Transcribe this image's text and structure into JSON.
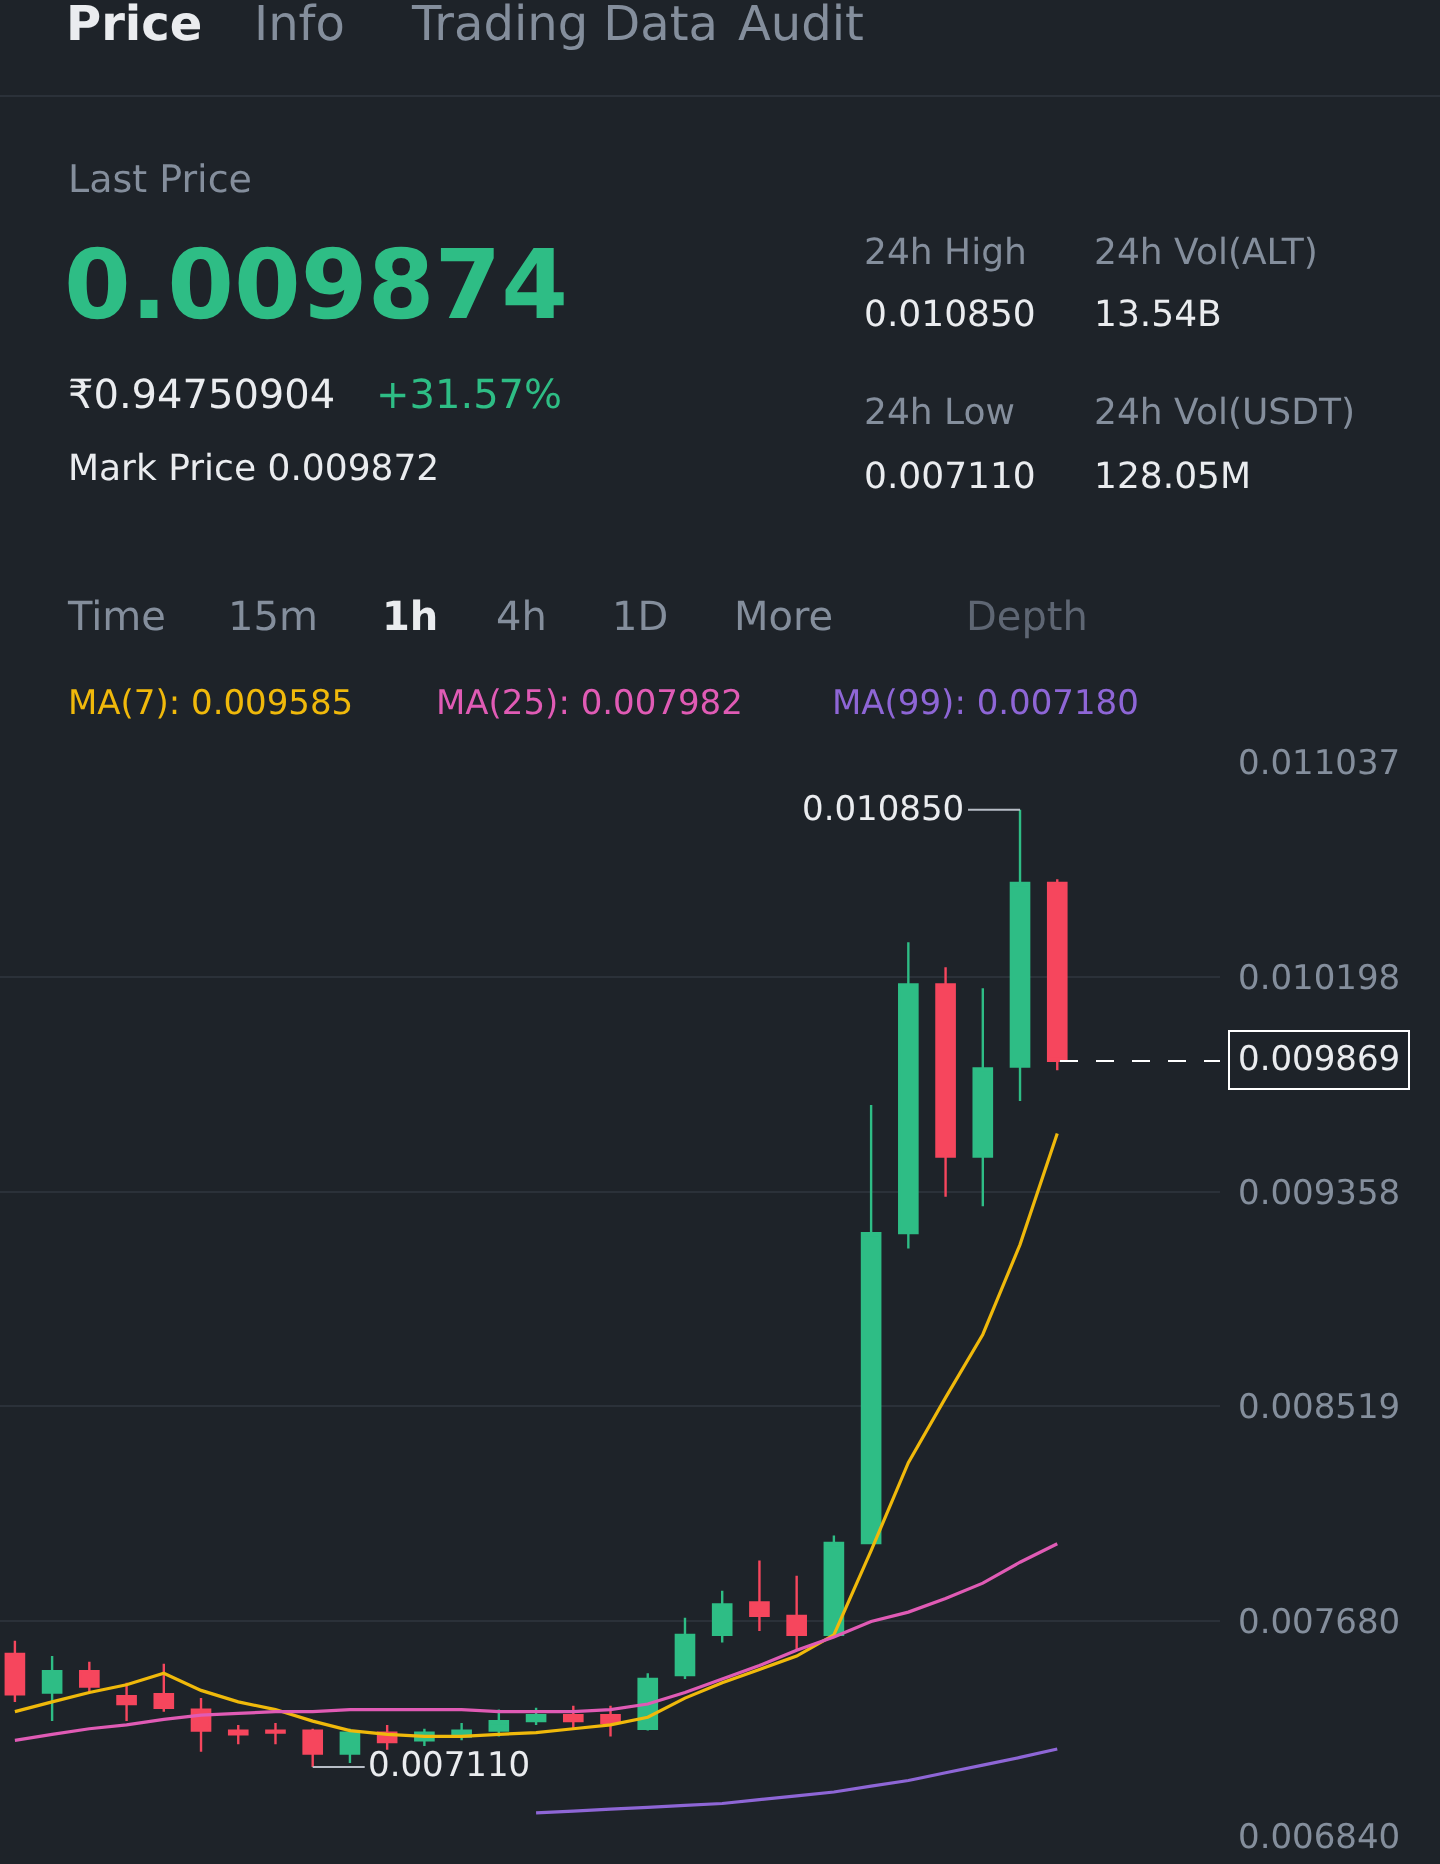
{
  "chart_data": {
    "type": "candlestick",
    "annotations": [
      "Price",
      "Info",
      "Trading Data",
      "Audit",
      "Last Price",
      "0.009874",
      "₹0.94750904",
      "+31.57%",
      "Mark Price 0.009872",
      "24h High",
      "0.010850",
      "24h Vol(ALT)",
      "13.54B",
      "24h Low",
      "0.007110",
      "24h Vol(USDT)",
      "128.05M",
      "Time",
      "15m",
      "1h",
      "4h",
      "1D",
      "More",
      "Depth",
      "0.010850",
      "0.007110"
    ],
    "categories": [
      null,
      null,
      null,
      null,
      null,
      null,
      null,
      null,
      null,
      null,
      null,
      null,
      null,
      null,
      null,
      null,
      null,
      null,
      null,
      null,
      null,
      null,
      null,
      null,
      null,
      null,
      null,
      null,
      null
    ],
    "ohlc": [
      [
        0.007551,
        0.007603,
        0.007364,
        0.007394
      ],
      [
        0.007401,
        0.007543,
        0.007289,
        0.007484
      ],
      [
        0.007484,
        0.007521,
        0.007401,
        0.007424
      ],
      [
        0.007386,
        0.007439,
        0.007289,
        0.007356
      ],
      [
        0.007394,
        0.007513,
        0.007326,
        0.007341
      ],
      [
        0.007334,
        0.007379,
        0.007169,
        0.007252
      ],
      [
        0.007252,
        0.007274,
        0.007199,
        0.007237
      ],
      [
        0.007252,
        0.007282,
        0.007199,
        0.007244
      ],
      [
        0.007252,
        0.007259,
        0.00711,
        0.007162
      ],
      [
        0.007162,
        0.007259,
        0.007125,
        0.007244
      ],
      [
        0.007244,
        0.007274,
        0.007177,
        0.007207
      ],
      [
        0.007214,
        0.007259,
        0.007192,
        0.007244
      ],
      [
        0.007229,
        0.007282,
        0.007214,
        0.007252
      ],
      [
        0.007252,
        0.007334,
        0.007229,
        0.007289
      ],
      [
        0.007289,
        0.007341,
        0.007274,
        0.007312
      ],
      [
        0.007312,
        0.007349,
        0.007259,
        0.007289
      ],
      [
        0.007312,
        0.007349,
        0.007229,
        0.007282
      ],
      [
        0.007259,
        0.007476,
        0.007252,
        0.007454
      ],
      [
        0.007469,
        0.007693,
        0.007454,
        0.007626
      ],
      [
        0.007626,
        0.007798,
        0.007596,
        0.007745
      ],
      [
        0.007753,
        0.007917,
        0.007641,
        0.0077
      ],
      [
        0.0077,
        0.007857,
        0.007566,
        0.007626
      ],
      [
        0.007626,
        0.008014,
        0.007626,
        0.007985
      ],
      [
        0.007985,
        0.009697,
        0.007985,
        0.009196
      ],
      [
        0.009196,
        0.010333,
        0.009136,
        0.010168
      ],
      [
        0.010168,
        0.010235,
        0.009338,
        0.009495
      ],
      [
        0.009495,
        0.010153,
        0.009301,
        0.009839
      ],
      [
        0.009847,
        0.01085,
        0.009712,
        0.010564
      ],
      [
        0.010564,
        0.010579,
        0.009832,
        0.009869
      ]
    ],
    "colors": [
      "#f6465d",
      "#2ebd85",
      "#f6465d",
      "#f6465d",
      "#f6465d",
      "#f6465d",
      "#f6465d",
      "#f6465d",
      "#f6465d",
      "#2ebd85",
      "#f6465d",
      "#2ebd85",
      "#2ebd85",
      "#2ebd85",
      "#2ebd85",
      "#f6465d",
      "#f6465d",
      "#2ebd85",
      "#2ebd85",
      "#2ebd85",
      "#f6465d",
      "#f6465d",
      "#2ebd85",
      "#2ebd85",
      "#2ebd85",
      "#f6465d",
      "#2ebd85",
      "#2ebd85",
      "#f6465d"
    ],
    "series": [
      {
        "type": "line",
        "name": "MA(7): 0.009585",
        "color": "#f0b90b",
        "values": [
          0.007326,
          0.007364,
          0.007401,
          0.007431,
          0.007476,
          0.007409,
          0.007364,
          0.007334,
          0.007289,
          0.007252,
          0.007237,
          0.007229,
          0.007229,
          0.007237,
          0.007244,
          0.007259,
          0.007274,
          0.007304,
          0.007379,
          0.007439,
          0.007491,
          0.007543,
          0.007626,
          0.007955,
          0.008299,
          0.008553,
          0.0088,
          0.009151,
          0.009585
        ]
      },
      {
        "type": "line",
        "name": "MA(25): 0.007982",
        "color": "#e05bb5",
        "values": [
          0.007214,
          0.007237,
          0.007259,
          0.007274,
          0.007296,
          0.007312,
          0.007319,
          0.007326,
          0.007326,
          0.007334,
          0.007334,
          0.007334,
          0.007334,
          0.007326,
          0.007326,
          0.007326,
          0.007334,
          0.007356,
          0.007401,
          0.007454,
          0.007506,
          0.007566,
          0.007618,
          0.007678,
          0.007715,
          0.007768,
          0.007828,
          0.00791,
          0.007982
        ]
      },
      {
        "type": "line",
        "name": "MA(99): 0.007180",
        "color": "#8e66d6",
        "values": [
          null,
          null,
          null,
          null,
          null,
          null,
          null,
          null,
          null,
          null,
          null,
          null,
          null,
          null,
          0.00693,
          0.006937,
          0.006945,
          0.006952,
          0.00696,
          0.006967,
          0.006982,
          0.006997,
          0.007012,
          0.007035,
          0.007057,
          0.007087,
          0.007117,
          0.007147,
          0.00718
        ]
      }
    ],
    "ylim": [
      0.00684,
      0.011037
    ],
    "yticks": [
      0.011037,
      0.010198,
      0.009358,
      0.008519,
      {
        "value": 0.00768,
        "label": "0.007680"
      },
      {
        "value": 0.00684,
        "label": "0.006840"
      }
    ],
    "grid": "y",
    "tick_labels": "y",
    "ref_lines": [
      {
        "axis": "y",
        "value": 0.009869,
        "label": "0.009869",
        "line_style": "dashed",
        "color": "#ffffff"
      }
    ]
  }
}
